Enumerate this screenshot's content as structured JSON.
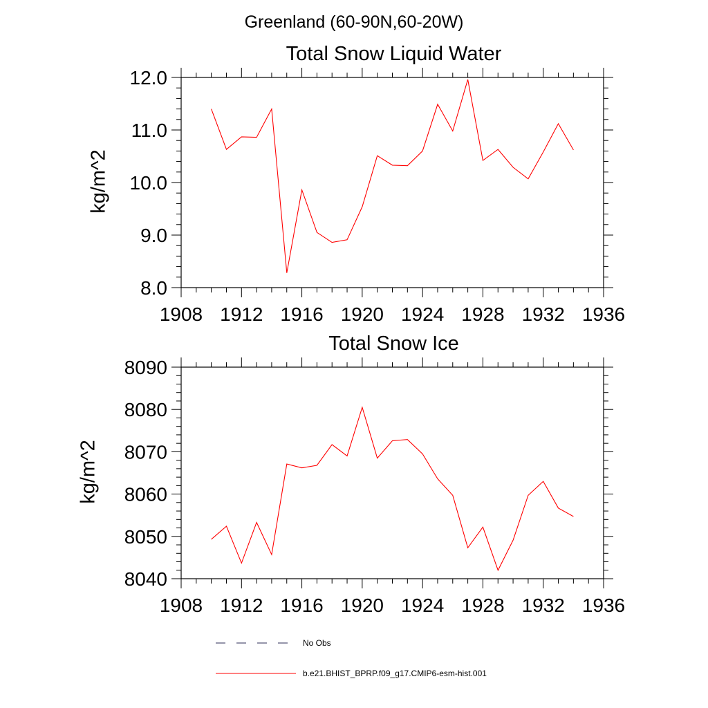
{
  "figure": {
    "title": "Greenland (60-90N,60-20W)"
  },
  "chart_data": [
    {
      "type": "line",
      "title": "Total Snow Liquid Water",
      "xlabel": "",
      "ylabel": "kg/m^2",
      "xlim": [
        1908,
        1936
      ],
      "ylim": [
        8.0,
        12.0
      ],
      "xticks": [
        1908,
        1912,
        1916,
        1920,
        1924,
        1928,
        1932,
        1936
      ],
      "yticks": [
        "8.0",
        "9.0",
        "10.0",
        "11.0",
        "12.0"
      ],
      "x": [
        1910,
        1911,
        1912,
        1913,
        1914,
        1915,
        1916,
        1917,
        1918,
        1919,
        1920,
        1921,
        1922,
        1923,
        1924,
        1925,
        1926,
        1927,
        1928,
        1929,
        1930,
        1931,
        1932,
        1933,
        1934
      ],
      "series": [
        {
          "name": "b.e21.BHIST_BPRP.f09_g17.CMIP6-esm-hist.001",
          "color": "#ff0000",
          "values": [
            11.4,
            10.63,
            10.87,
            10.86,
            11.4,
            8.28,
            9.86,
            9.05,
            8.86,
            8.91,
            9.54,
            10.51,
            10.33,
            10.32,
            10.6,
            11.49,
            10.98,
            11.96,
            10.42,
            10.63,
            10.29,
            10.07,
            10.58,
            11.12,
            10.62
          ]
        }
      ],
      "grid": false
    },
    {
      "type": "line",
      "title": "Total Snow Ice",
      "xlabel": "",
      "ylabel": "kg/m^2",
      "xlim": [
        1908,
        1936
      ],
      "ylim": [
        8040,
        8090
      ],
      "xticks": [
        1908,
        1912,
        1916,
        1920,
        1924,
        1928,
        1932,
        1936
      ],
      "yticks": [
        "8040",
        "8050",
        "8060",
        "8070",
        "8080",
        "8090"
      ],
      "x": [
        1910,
        1911,
        1912,
        1913,
        1914,
        1915,
        1916,
        1917,
        1918,
        1919,
        1920,
        1921,
        1922,
        1923,
        1924,
        1925,
        1926,
        1927,
        1928,
        1929,
        1930,
        1931,
        1932,
        1933,
        1934
      ],
      "series": [
        {
          "name": "b.e21.BHIST_BPRP.f09_g17.CMIP6-esm-hist.001",
          "color": "#ff0000",
          "values": [
            8049.3,
            8052.4,
            8043.7,
            8053.3,
            8045.7,
            8067.1,
            8066.2,
            8066.8,
            8071.7,
            8069.0,
            8080.5,
            8068.5,
            8072.6,
            8072.9,
            8069.5,
            8063.6,
            8059.7,
            8047.3,
            8052.2,
            8042.0,
            8049.1,
            8059.7,
            8063.0,
            8056.7,
            8054.7
          ]
        }
      ],
      "grid": false
    }
  ],
  "legend": {
    "placement": "bottom",
    "items": [
      {
        "label": "No Obs",
        "style": "dashed",
        "color": "#2b2b55"
      },
      {
        "label": "b.e21.BHIST_BPRP.f09_g17.CMIP6-esm-hist.001",
        "style": "solid",
        "color": "#ff0000"
      }
    ]
  }
}
